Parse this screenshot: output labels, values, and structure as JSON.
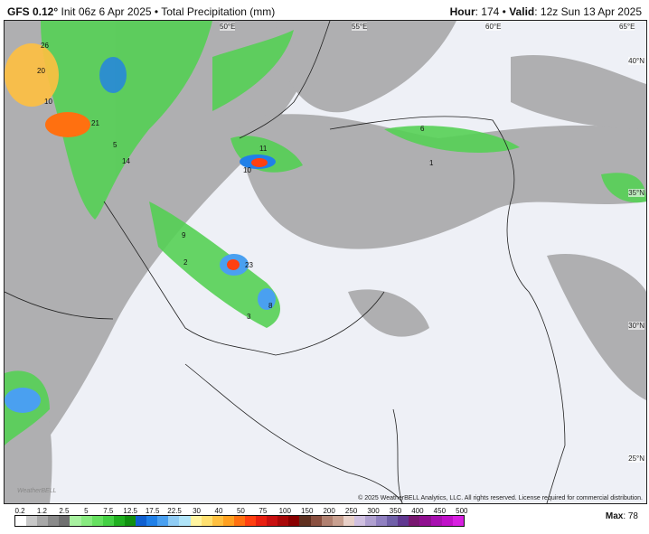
{
  "header": {
    "model": "GFS 0.12°",
    "init": "Init 06z 6 Apr 2025",
    "separator": "•",
    "product": "Total Precipitation (mm)",
    "hour_label": "Hour",
    "hour": "174",
    "valid_label": "Valid",
    "valid": "12z Sun 13 Apr 2025"
  },
  "map": {
    "longitude_labels": [
      "50°E",
      "55°E",
      "60°E",
      "65°E"
    ],
    "latitude_labels": [
      "40°N",
      "35°N",
      "30°N",
      "25°N"
    ],
    "contour_labels": [
      "26",
      "20",
      "10",
      "21",
      "14",
      "11",
      "10",
      "23",
      "9",
      "5",
      "3",
      "1",
      "6",
      "2",
      "8"
    ],
    "logo": "WeatherBELL",
    "copyright": "© 2025 WeatherBELL Analytics, LLC. All rights reserved. License required for commercial distribution."
  },
  "legend": {
    "ticks": [
      "0.2",
      "1.2",
      "2.5",
      "5",
      "7.5",
      "12.5",
      "17.5",
      "22.5",
      "30",
      "40",
      "50",
      "75",
      "100",
      "150",
      "200",
      "250",
      "300",
      "350",
      "400",
      "450",
      "500"
    ],
    "colors": [
      "#ffffff",
      "#c8c8c8",
      "#a8a8a8",
      "#8a8a8a",
      "#707070",
      "#a8f0a0",
      "#88ea80",
      "#66e060",
      "#44d044",
      "#20b020",
      "#109010",
      "#1060d0",
      "#2080e8",
      "#4aa0f0",
      "#90ccf4",
      "#b0e4f8",
      "#fff4a0",
      "#ffe070",
      "#ffc040",
      "#ffa020",
      "#ff7010",
      "#ff4010",
      "#e82010",
      "#c81010",
      "#a80808",
      "#880000",
      "#603020",
      "#8a5040",
      "#b08070",
      "#c8a090",
      "#e8d0c8",
      "#d0c0e0",
      "#b0a0d0",
      "#9080c0",
      "#7060a8",
      "#603890",
      "#781870",
      "#901090",
      "#a810b0",
      "#c010c8",
      "#d820e0"
    ],
    "max_label": "Max",
    "max_value": "78"
  }
}
